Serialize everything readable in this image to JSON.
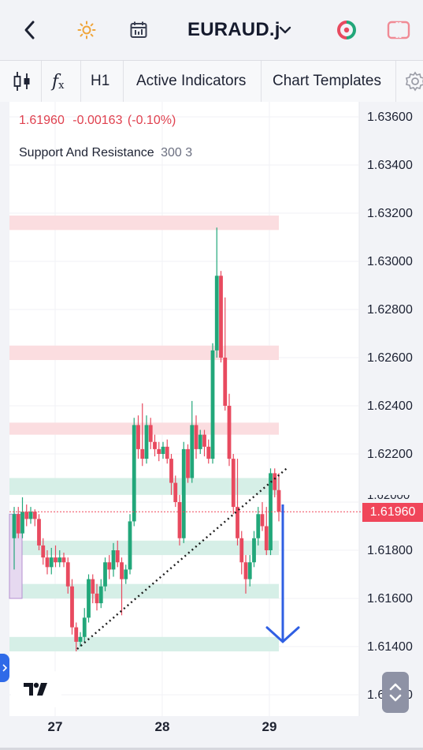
{
  "header": {
    "symbol": "EURAUD.j",
    "back_icon": "chevron-left-icon",
    "theme_icon": "sun-icon",
    "calendar_icon": "calendar-icon",
    "dropdown_icon": "chevron-down-icon",
    "trade_icon": "trade-circle-icon",
    "layout_icon": "layout-icon"
  },
  "toolbar": {
    "candles_icon": "candles-icon",
    "formula_icon": "fx-icon",
    "timeframe": "H1",
    "indicators_label": "Active Indicators",
    "templates_label": "Chart Templates",
    "settings_icon": "gear-icon"
  },
  "chart": {
    "quote": {
      "price": "1.61960",
      "change": "-0.00163",
      "change_pct": "(-0.10%)"
    },
    "indicator": {
      "name": "Support And Resistance",
      "params": "300 3"
    },
    "current_price_label": "1.61960",
    "partial_price_label": "1.62000",
    "logo_icon": "tradingview-logo-icon",
    "scroll_icon": "expand-updown-icon",
    "side_tab_icon": "chevron-right-icon",
    "colors": {
      "bull": "#22a77a",
      "bear": "#e84a5f",
      "resistance_zone": "#fbdde0",
      "support_zone": "#d6efe7",
      "arrow": "#2f5fe3",
      "price_tag": "#f0465a",
      "quote_text": "#e0414f"
    }
  },
  "chart_data": {
    "type": "candlestick",
    "y_ticks": [
      "1.63600",
      "1.63400",
      "1.63200",
      "1.63000",
      "1.62800",
      "1.62600",
      "1.62400",
      "1.62200",
      "1.62000",
      "1.61800",
      "1.61600",
      "1.61400",
      "1.61200"
    ],
    "x_ticks": [
      "27",
      "28",
      "29"
    ],
    "ylim": [
      1.6118,
      1.6365
    ],
    "resistance_zones": [
      [
        1.6313,
        1.6319
      ],
      [
        1.6259,
        1.6265
      ],
      [
        1.6228,
        1.6233
      ]
    ],
    "support_zones": [
      [
        1.6203,
        1.621
      ],
      [
        1.6178,
        1.6184
      ],
      [
        1.616,
        1.6166
      ],
      [
        1.6138,
        1.6144
      ]
    ],
    "trendline": [
      [
        1.6141,
        1.6215
      ]
    ],
    "candles": [
      [
        1.6185,
        1.6195,
        1.6198,
        1.6172
      ],
      [
        1.6195,
        1.6187,
        1.6198,
        1.6185
      ],
      [
        1.6187,
        1.6196,
        1.6202,
        1.6185
      ],
      [
        1.6196,
        1.6193,
        1.6199,
        1.619
      ],
      [
        1.6193,
        1.6196,
        1.6198,
        1.6191
      ],
      [
        1.6196,
        1.6193,
        1.6197,
        1.619
      ],
      [
        1.6193,
        1.6182,
        1.6195,
        1.618
      ],
      [
        1.6182,
        1.6177,
        1.6185,
        1.6174
      ],
      [
        1.6177,
        1.6173,
        1.618,
        1.617
      ],
      [
        1.6173,
        1.6177,
        1.6181,
        1.617
      ],
      [
        1.6177,
        1.6175,
        1.6182,
        1.6173
      ],
      [
        1.6175,
        1.6177,
        1.618,
        1.6173
      ],
      [
        1.6177,
        1.6175,
        1.6179,
        1.6173
      ],
      [
        1.6175,
        1.6165,
        1.6177,
        1.6162
      ],
      [
        1.6165,
        1.6148,
        1.6168,
        1.6145
      ],
      [
        1.6148,
        1.6142,
        1.615,
        1.6138
      ],
      [
        1.6142,
        1.6144,
        1.6146,
        1.614
      ],
      [
        1.6144,
        1.6152,
        1.6156,
        1.6142
      ],
      [
        1.6152,
        1.6168,
        1.617,
        1.615
      ],
      [
        1.6168,
        1.6162,
        1.617,
        1.6158
      ],
      [
        1.6162,
        1.6158,
        1.6166,
        1.6155
      ],
      [
        1.6158,
        1.6165,
        1.6168,
        1.6156
      ],
      [
        1.6165,
        1.6175,
        1.6177,
        1.6163
      ],
      [
        1.6175,
        1.6172,
        1.6178,
        1.6168
      ],
      [
        1.6172,
        1.618,
        1.6183,
        1.6169
      ],
      [
        1.618,
        1.6175,
        1.6184,
        1.6173
      ],
      [
        1.6175,
        1.6168,
        1.6177,
        1.6153
      ],
      [
        1.6168,
        1.6172,
        1.6174,
        1.6166
      ],
      [
        1.6172,
        1.6192,
        1.6195,
        1.617
      ],
      [
        1.6192,
        1.6232,
        1.6235,
        1.619
      ],
      [
        1.6232,
        1.6222,
        1.6236,
        1.6218
      ],
      [
        1.6222,
        1.6218,
        1.6241,
        1.6215
      ],
      [
        1.6218,
        1.6232,
        1.6236,
        1.6216
      ],
      [
        1.6232,
        1.6225,
        1.6235,
        1.6222
      ],
      [
        1.6225,
        1.6222,
        1.6228,
        1.6219
      ],
      [
        1.6222,
        1.622,
        1.6225,
        1.6217
      ],
      [
        1.622,
        1.6223,
        1.6225,
        1.6218
      ],
      [
        1.6223,
        1.6218,
        1.6226,
        1.6216
      ],
      [
        1.6218,
        1.6208,
        1.622,
        1.6203
      ],
      [
        1.6208,
        1.62,
        1.6211,
        1.6198
      ],
      [
        1.62,
        1.6185,
        1.6203,
        1.6182
      ],
      [
        1.6185,
        1.6222,
        1.6225,
        1.6183
      ],
      [
        1.6222,
        1.621,
        1.6224,
        1.6208
      ],
      [
        1.621,
        1.6232,
        1.6242,
        1.6208
      ],
      [
        1.6232,
        1.6222,
        1.6236,
        1.6218
      ],
      [
        1.6222,
        1.6228,
        1.623,
        1.622
      ],
      [
        1.6228,
        1.6223,
        1.623,
        1.6219
      ],
      [
        1.6223,
        1.6218,
        1.6226,
        1.6216
      ],
      [
        1.6218,
        1.6263,
        1.6266,
        1.6216
      ],
      [
        1.6263,
        1.6294,
        1.6314,
        1.626
      ],
      [
        1.6294,
        1.626,
        1.6296,
        1.6258
      ],
      [
        1.626,
        1.624,
        1.6285,
        1.6238
      ],
      [
        1.624,
        1.6218,
        1.6245,
        1.6215
      ],
      [
        1.6218,
        1.6198,
        1.622,
        1.6195
      ],
      [
        1.6198,
        1.6185,
        1.6218,
        1.6182
      ],
      [
        1.6185,
        1.6175,
        1.6188,
        1.617
      ],
      [
        1.6175,
        1.6168,
        1.6178,
        1.6162
      ],
      [
        1.6168,
        1.6175,
        1.6178,
        1.6165
      ],
      [
        1.6175,
        1.6185,
        1.6188,
        1.6173
      ],
      [
        1.6185,
        1.6195,
        1.6198,
        1.6182
      ],
      [
        1.6195,
        1.619,
        1.62,
        1.6188
      ],
      [
        1.619,
        1.618,
        1.6198,
        1.6178
      ],
      [
        1.618,
        1.6212,
        1.6214,
        1.6178
      ],
      [
        1.6212,
        1.6205,
        1.6214,
        1.6202
      ],
      [
        1.6205,
        1.6196,
        1.6212,
        1.6192
      ]
    ],
    "x_tick_positions": [
      18,
      42,
      66
    ],
    "projection_target": 1.6142
  }
}
